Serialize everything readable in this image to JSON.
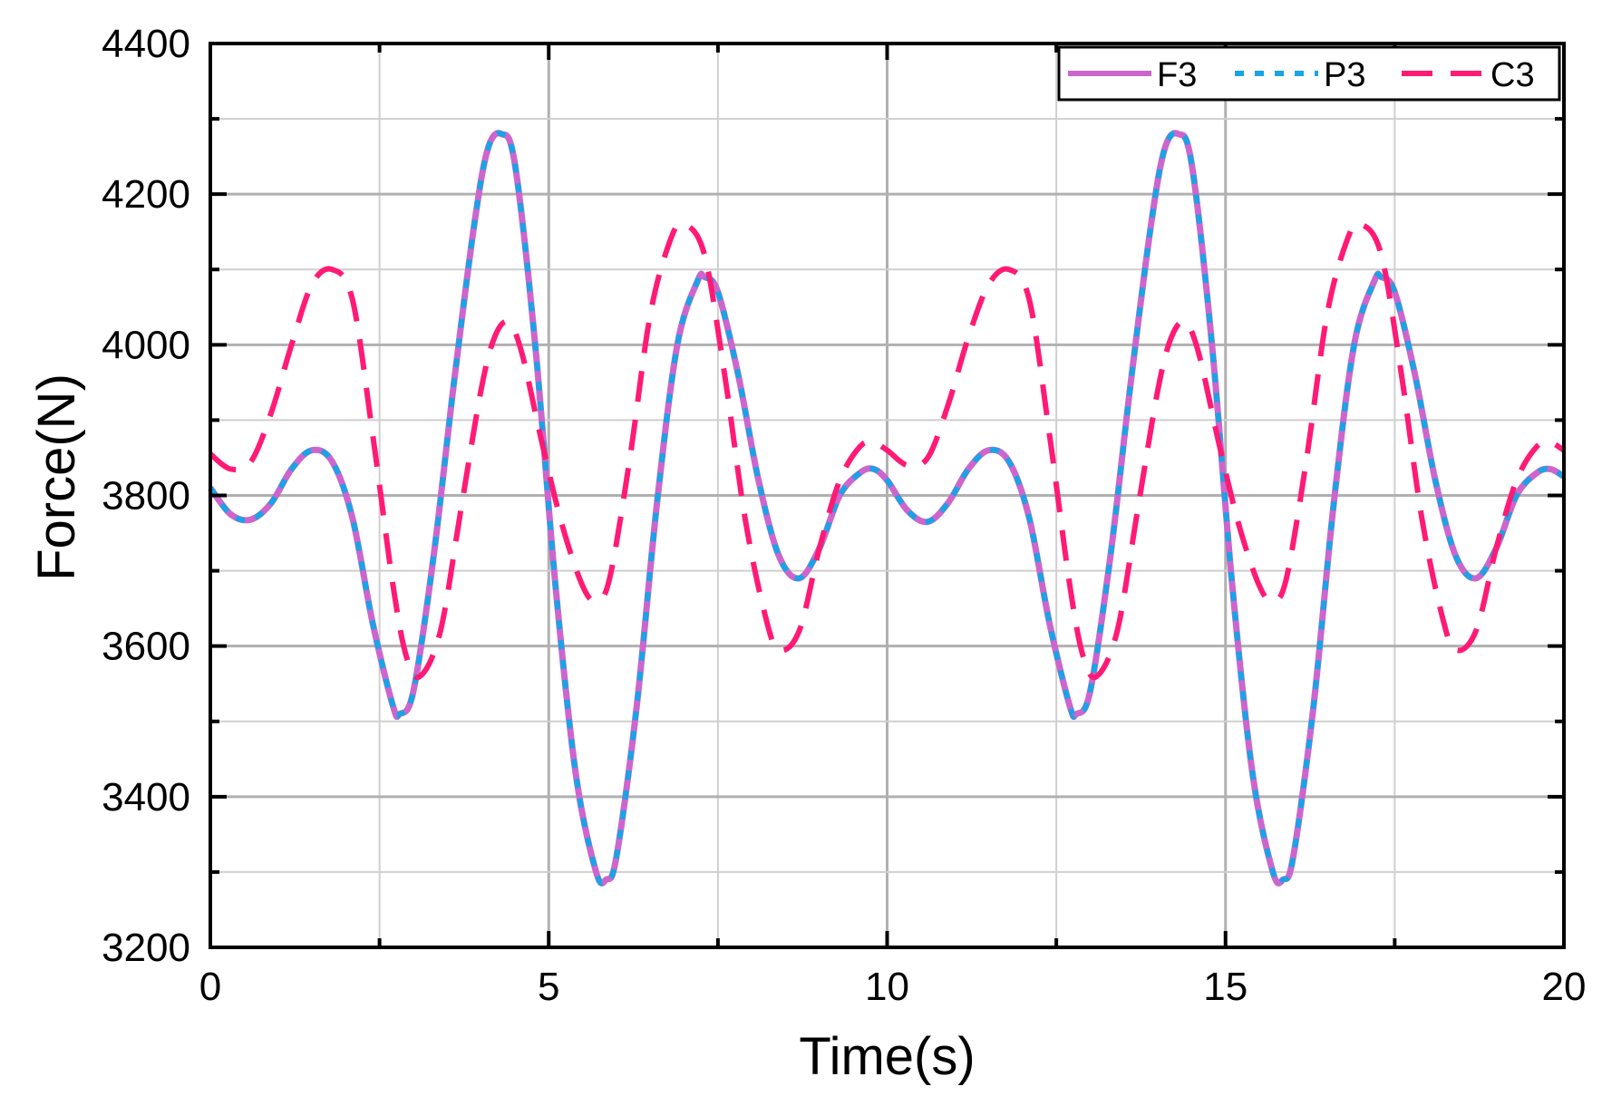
{
  "chart_data": {
    "type": "line",
    "title": "",
    "xlabel": "Time(s)",
    "ylabel": "Force(N)",
    "xlim": [
      0,
      20
    ],
    "ylim": [
      3200,
      4400
    ],
    "xticks": [
      "0",
      "5",
      "10",
      "15",
      "20"
    ],
    "yticks": [
      "3200",
      "3400",
      "3600",
      "3800",
      "4000",
      "4200",
      "4400"
    ],
    "grid": true,
    "legend_position": "top-right",
    "series": [
      {
        "name": "F3",
        "color": "#cc66cc",
        "style": "solid",
        "x": [
          0,
          0.3,
          0.6,
          0.9,
          1.2,
          1.5,
          1.8,
          2.1,
          2.4,
          2.7,
          2.8,
          3.0,
          3.3,
          3.6,
          3.9,
          4.1,
          4.3,
          4.5,
          4.8,
          5.1,
          5.4,
          5.7,
          5.85,
          6.0,
          6.3,
          6.6,
          6.9,
          7.2,
          7.3,
          7.5,
          7.8,
          8.1,
          8.4,
          8.7,
          9.0,
          9.3,
          9.6,
          9.8,
          10.0,
          10.3,
          10.6,
          10.9,
          11.2,
          11.5,
          11.8,
          12.1,
          12.4,
          12.7,
          12.8,
          13.0,
          13.3,
          13.6,
          13.9,
          14.1,
          14.3,
          14.5,
          14.8,
          15.1,
          15.4,
          15.7,
          15.85,
          16.0,
          16.3,
          16.6,
          16.9,
          17.2,
          17.3,
          17.5,
          17.8,
          18.1,
          18.4,
          18.7,
          19.0,
          19.3,
          19.6,
          19.8,
          20.0
        ],
        "y": [
          3810,
          3775,
          3768,
          3790,
          3835,
          3860,
          3845,
          3770,
          3630,
          3520,
          3510,
          3540,
          3720,
          3950,
          4160,
          4260,
          4280,
          4240,
          4000,
          3680,
          3430,
          3300,
          3290,
          3320,
          3520,
          3790,
          4000,
          4085,
          4090,
          4070,
          3960,
          3820,
          3720,
          3690,
          3730,
          3800,
          3830,
          3835,
          3820,
          3780,
          3765,
          3790,
          3835,
          3860,
          3845,
          3770,
          3630,
          3520,
          3510,
          3540,
          3720,
          3950,
          4160,
          4260,
          4280,
          4240,
          4000,
          3680,
          3430,
          3300,
          3290,
          3320,
          3520,
          3790,
          4000,
          4085,
          4090,
          4070,
          3960,
          3820,
          3720,
          3690,
          3730,
          3800,
          3830,
          3835,
          3825
        ]
      },
      {
        "name": "P3",
        "color": "#1aa3e6",
        "style": "dotted",
        "x": [
          0,
          0.3,
          0.6,
          0.9,
          1.2,
          1.5,
          1.8,
          2.1,
          2.4,
          2.7,
          2.8,
          3.0,
          3.3,
          3.6,
          3.9,
          4.1,
          4.3,
          4.5,
          4.8,
          5.1,
          5.4,
          5.7,
          5.85,
          6.0,
          6.3,
          6.6,
          6.9,
          7.2,
          7.3,
          7.5,
          7.8,
          8.1,
          8.4,
          8.7,
          9.0,
          9.3,
          9.6,
          9.8,
          10.0,
          10.3,
          10.6,
          10.9,
          11.2,
          11.5,
          11.8,
          12.1,
          12.4,
          12.7,
          12.8,
          13.0,
          13.3,
          13.6,
          13.9,
          14.1,
          14.3,
          14.5,
          14.8,
          15.1,
          15.4,
          15.7,
          15.85,
          16.0,
          16.3,
          16.6,
          16.9,
          17.2,
          17.3,
          17.5,
          17.8,
          18.1,
          18.4,
          18.7,
          19.0,
          19.3,
          19.6,
          19.8,
          20.0
        ],
        "y": [
          3810,
          3775,
          3768,
          3790,
          3835,
          3860,
          3845,
          3770,
          3630,
          3520,
          3510,
          3540,
          3720,
          3950,
          4160,
          4260,
          4280,
          4240,
          4000,
          3680,
          3430,
          3300,
          3290,
          3320,
          3520,
          3790,
          4000,
          4085,
          4090,
          4070,
          3960,
          3820,
          3720,
          3690,
          3730,
          3800,
          3830,
          3835,
          3820,
          3780,
          3765,
          3790,
          3835,
          3860,
          3845,
          3770,
          3630,
          3520,
          3510,
          3540,
          3720,
          3950,
          4160,
          4260,
          4280,
          4240,
          4000,
          3680,
          3430,
          3300,
          3290,
          3320,
          3520,
          3790,
          4000,
          4085,
          4090,
          4070,
          3960,
          3820,
          3720,
          3690,
          3730,
          3800,
          3830,
          3835,
          3825
        ]
      },
      {
        "name": "C3",
        "color": "#ff1a75",
        "style": "dashed",
        "x": [
          0,
          0.3,
          0.6,
          0.9,
          1.2,
          1.5,
          1.8,
          2.1,
          2.4,
          2.7,
          2.9,
          3.1,
          3.4,
          3.7,
          4.0,
          4.2,
          4.4,
          4.6,
          4.9,
          5.2,
          5.5,
          5.7,
          5.9,
          6.2,
          6.5,
          6.8,
          7.0,
          7.3,
          7.6,
          7.9,
          8.2,
          8.4,
          8.7,
          9.0,
          9.3,
          9.6,
          9.8,
          10.0,
          10.3,
          10.6,
          10.9,
          11.2,
          11.5,
          11.8,
          12.1,
          12.4,
          12.7,
          12.9,
          13.1,
          13.4,
          13.7,
          14.0,
          14.2,
          14.4,
          14.6,
          14.9,
          15.2,
          15.5,
          15.7,
          15.9,
          16.2,
          16.5,
          16.8,
          17.0,
          17.3,
          17.6,
          17.9,
          18.2,
          18.4,
          18.7,
          19.0,
          19.3,
          19.6,
          19.8,
          20.0
        ],
        "y": [
          3855,
          3835,
          3845,
          3910,
          4000,
          4080,
          4100,
          4060,
          3880,
          3680,
          3585,
          3560,
          3620,
          3780,
          3940,
          4010,
          4030,
          3990,
          3870,
          3760,
          3680,
          3660,
          3690,
          3850,
          4040,
          4140,
          4160,
          4120,
          3960,
          3770,
          3640,
          3595,
          3620,
          3730,
          3820,
          3865,
          3870,
          3860,
          3840,
          3850,
          3920,
          4010,
          4080,
          4100,
          4060,
          3880,
          3680,
          3585,
          3560,
          3620,
          3780,
          3940,
          4010,
          4030,
          3990,
          3870,
          3760,
          3680,
          3660,
          3690,
          3850,
          4040,
          4140,
          4160,
          4120,
          3960,
          3770,
          3640,
          3595,
          3620,
          3730,
          3820,
          3865,
          3870,
          3860
        ]
      }
    ]
  }
}
